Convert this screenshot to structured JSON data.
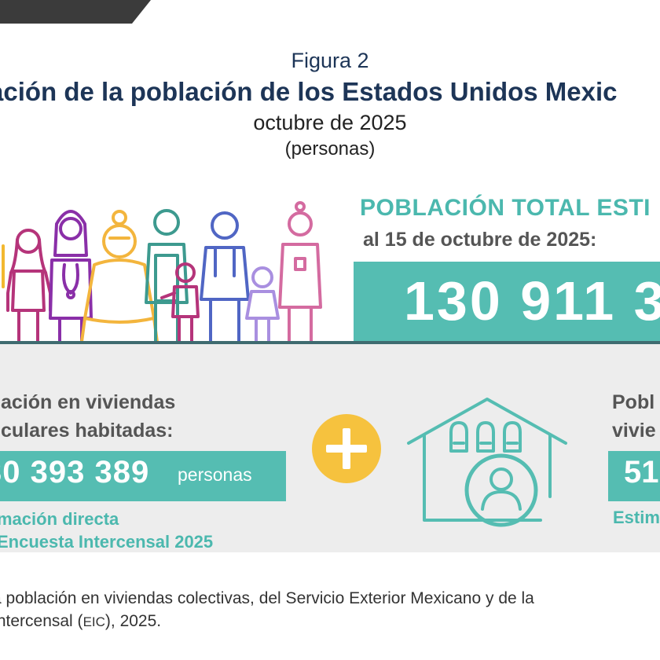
{
  "figure": {
    "label": "Figura 2",
    "title": "ación de la población de los Estados Unidos Mexic",
    "date": "octubre de 2025",
    "units": "(personas)"
  },
  "total": {
    "heading": "POBLACIÓN TOTAL ESTI",
    "date_label": "al 15 de octubre de 2025:",
    "value": "130 911 3"
  },
  "private_dwellings": {
    "heading_line1": "lación en viviendas",
    "heading_line2": "iculares habitadas:",
    "value": "30 393 389",
    "unit": "personas",
    "note_line1": "mación directa",
    "note_line2": "Encuesta Intercensal 2025"
  },
  "collective": {
    "heading_line1": "Pobl",
    "heading_line2": "vivie",
    "value": "51",
    "note": "Estim"
  },
  "footnote": {
    "line1": "a población en viviendas colectivas, del Servicio Exterior Mexicano y de la",
    "line2_pre": "Intercensal (",
    "line2_abbr": "EIC",
    "line2_post": "), 2025."
  },
  "colors": {
    "title": "#1d3557",
    "teal": "#55bdb2",
    "teal_text": "#4bb8ae",
    "plus": "#f6c23e",
    "band": "#ededed"
  },
  "icons": [
    "people-illustration-icon",
    "plus-icon",
    "house-icon"
  ]
}
